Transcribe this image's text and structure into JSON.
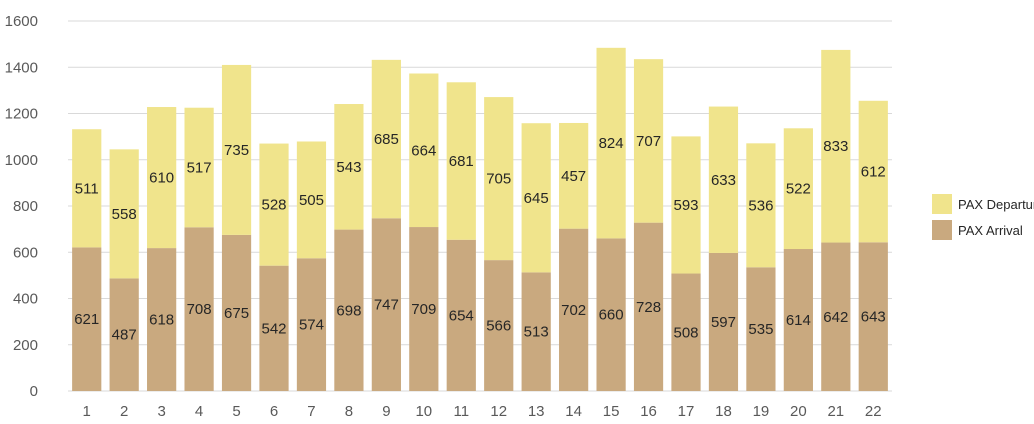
{
  "chart_data": {
    "type": "bar",
    "stacked": true,
    "categories": [
      "1",
      "2",
      "3",
      "4",
      "5",
      "6",
      "7",
      "8",
      "9",
      "10",
      "11",
      "12",
      "13",
      "14",
      "15",
      "16",
      "17",
      "18",
      "19",
      "20",
      "21",
      "22"
    ],
    "series": [
      {
        "name": "PAX Arrival",
        "color": "#c9a97f",
        "values": [
          621,
          487,
          618,
          708,
          675,
          542,
          574,
          698,
          747,
          709,
          654,
          566,
          513,
          702,
          660,
          728,
          508,
          597,
          535,
          614,
          642,
          643
        ]
      },
      {
        "name": "PAX Departure",
        "color": "#f0e48c",
        "values": [
          511,
          558,
          610,
          517,
          735,
          528,
          505,
          543,
          685,
          664,
          681,
          705,
          645,
          457,
          824,
          707,
          593,
          633,
          536,
          522,
          833,
          612
        ]
      }
    ],
    "ylim": [
      0,
      1600
    ],
    "yticks": [
      0,
      200,
      400,
      600,
      800,
      1000,
      1200,
      1400,
      1600
    ],
    "grid": true,
    "legend_position": "right",
    "data_labels": true
  }
}
